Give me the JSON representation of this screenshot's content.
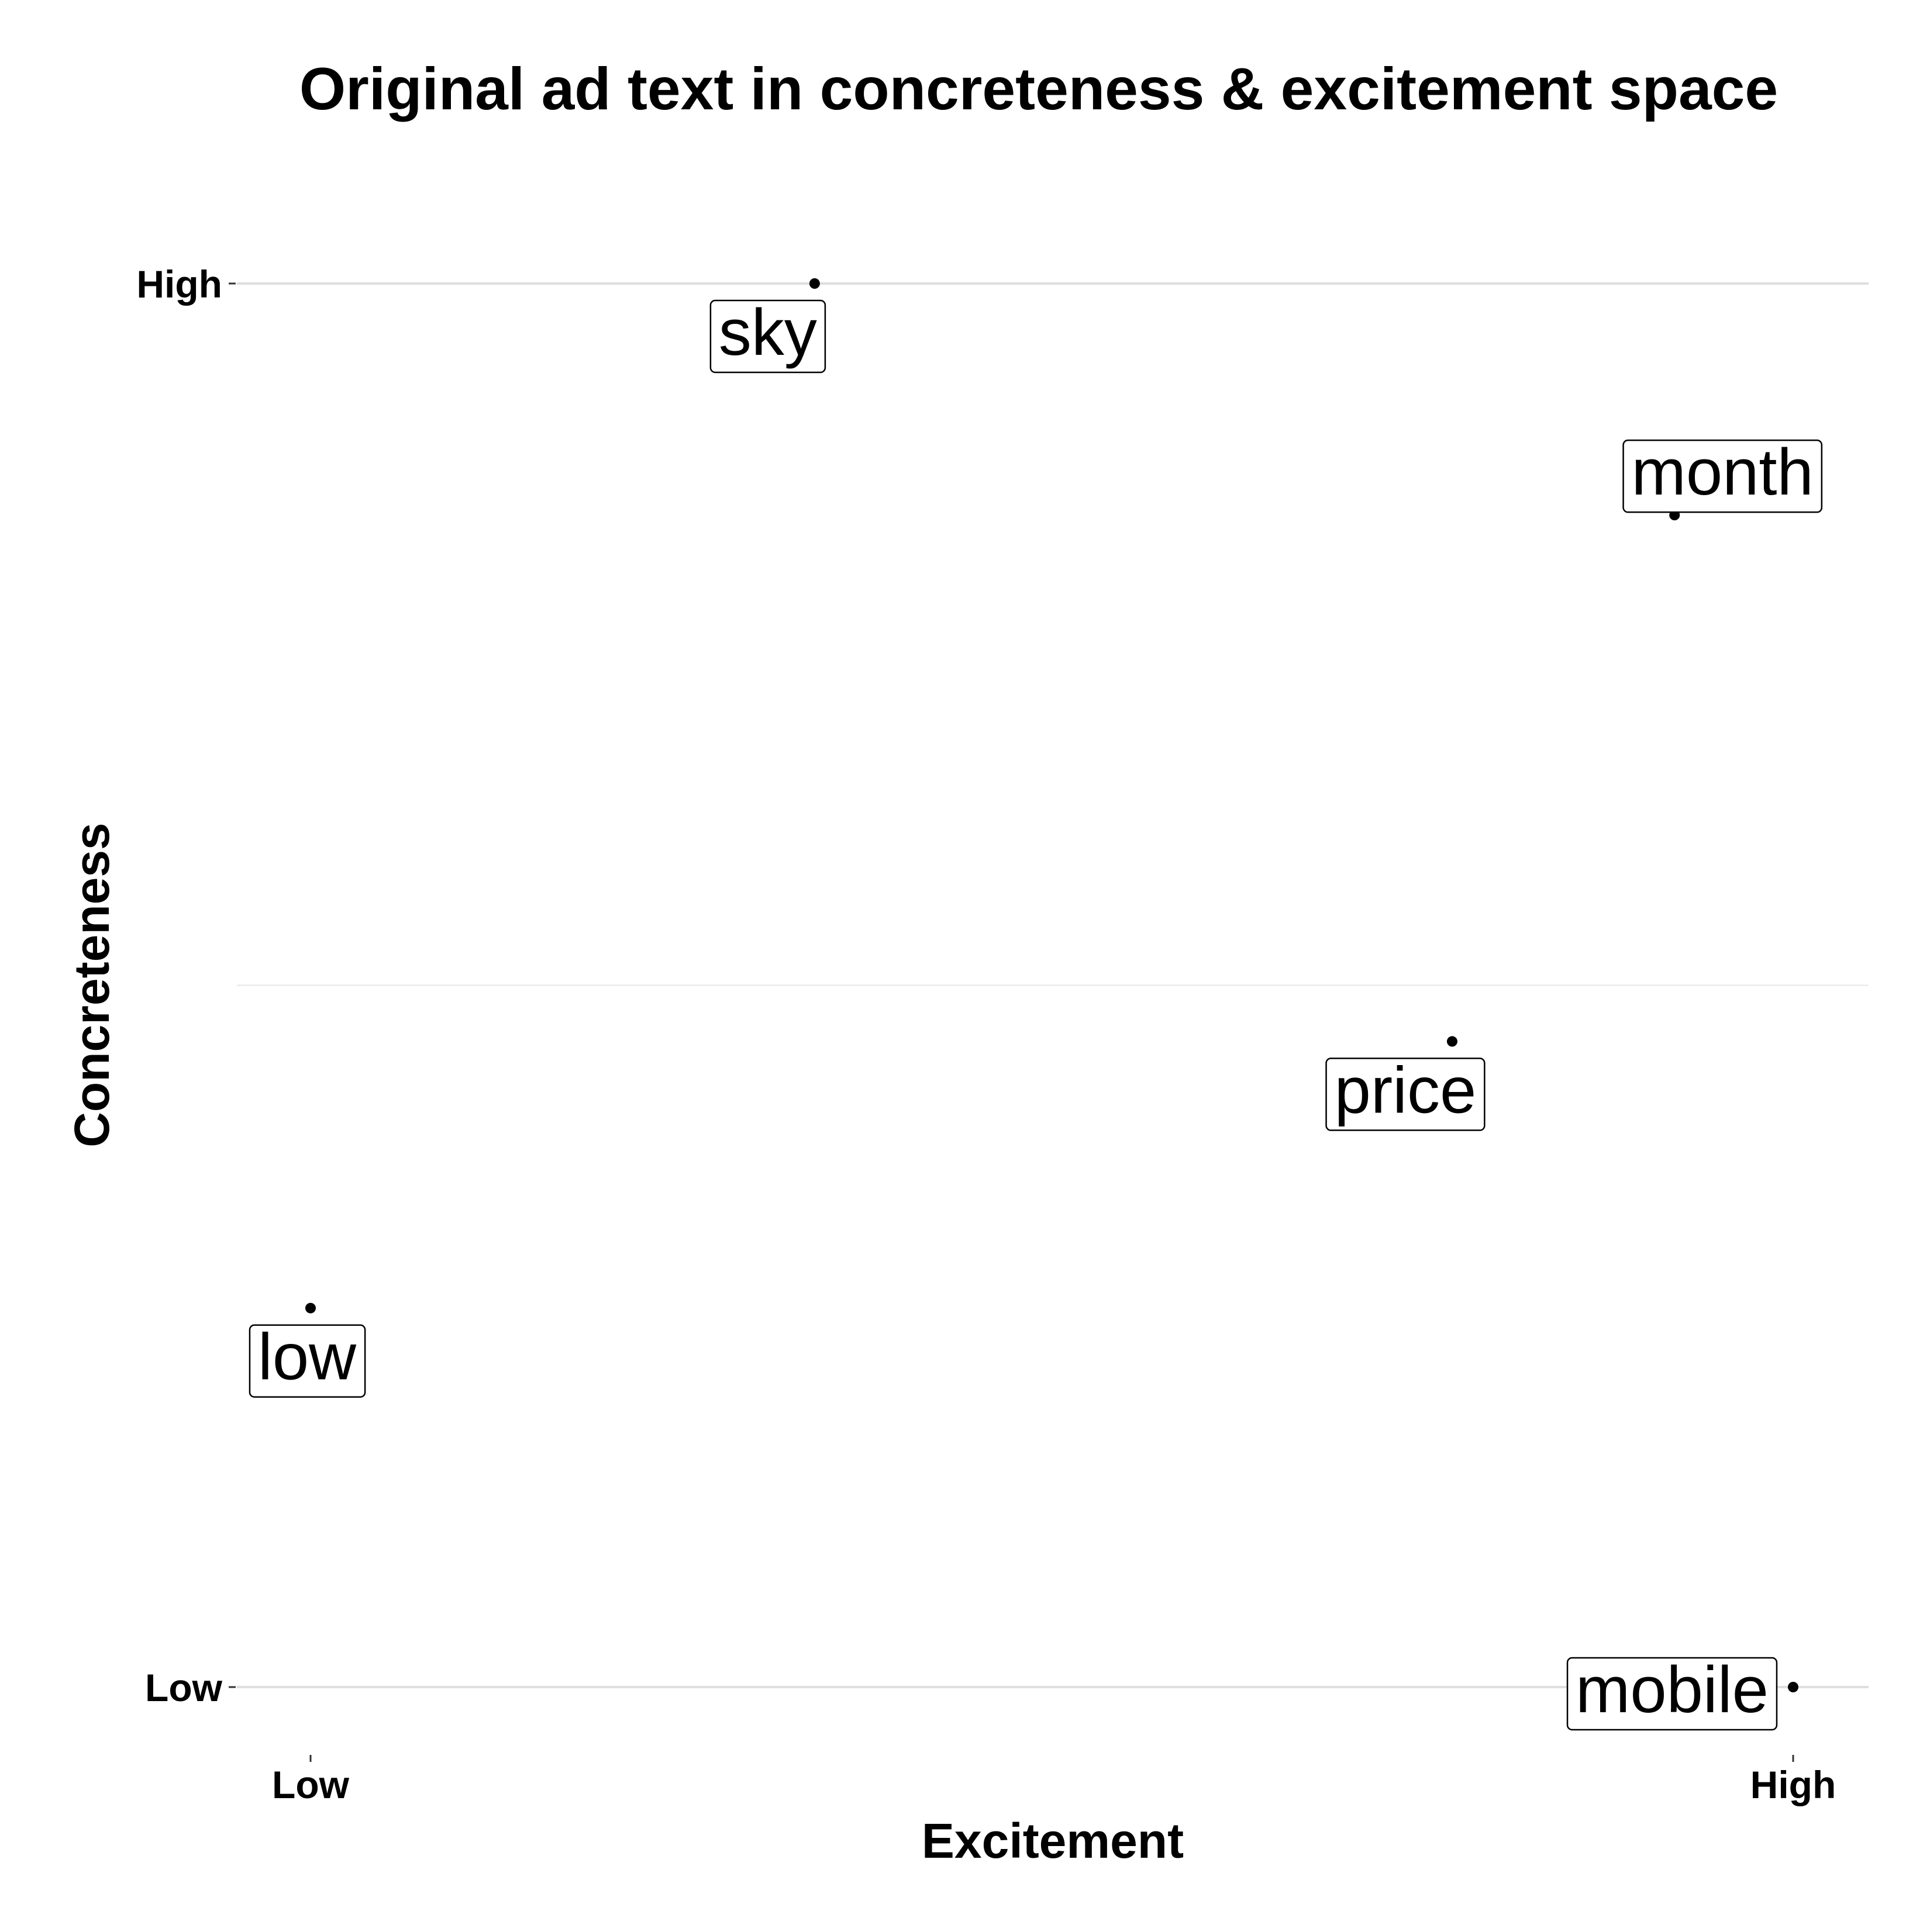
{
  "chart_data": {
    "type": "scatter",
    "title": "Original ad text in concreteness & excitement space",
    "xlabel": "Excitement",
    "ylabel": "Concreteness",
    "xlim": [
      -0.05,
      1.05
    ],
    "ylim": [
      -0.05,
      1.05
    ],
    "x_ticks": [
      {
        "value": 0,
        "label": "Low"
      },
      {
        "value": 1,
        "label": "High"
      }
    ],
    "y_ticks": [
      {
        "value": 0,
        "label": "Low"
      },
      {
        "value": 1,
        "label": "High"
      }
    ],
    "grid": true,
    "legend": "none",
    "points": [
      {
        "label": "sky",
        "x": 0.34,
        "y": 1.0
      },
      {
        "label": "month",
        "x": 0.92,
        "y": 0.835
      },
      {
        "label": "price",
        "x": 0.77,
        "y": 0.46
      },
      {
        "label": "low",
        "x": 0.0,
        "y": 0.27
      },
      {
        "label": "mobile",
        "x": 1.0,
        "y": 0.0
      }
    ]
  }
}
